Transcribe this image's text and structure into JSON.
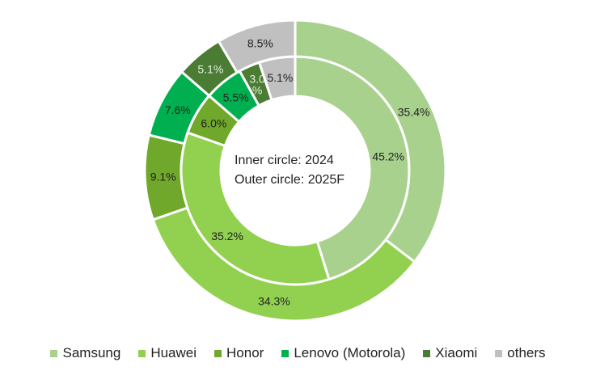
{
  "chart_data": {
    "type": "pie",
    "variant": "nested-donut",
    "categories": [
      "Samsung",
      "Huawei",
      "Honor",
      "Lenovo (Motorola)",
      "Xiaomi",
      "others"
    ],
    "colors": [
      "#a9d18e",
      "#92d050",
      "#6fa82a",
      "#00b050",
      "#4a7c34",
      "#c0c0c0"
    ],
    "label_colors": [
      "#222",
      "#222",
      "#222",
      "#222",
      "#e8f0e0",
      "#222"
    ],
    "series": [
      {
        "name": "2024",
        "ring": "inner",
        "values": [
          45.2,
          35.2,
          6.0,
          5.5,
          3.0,
          5.1
        ],
        "labels": [
          "45.2%",
          "35.2%",
          "6.0%",
          "5.5%",
          "3.0\n%",
          "5.1%"
        ]
      },
      {
        "name": "2025F",
        "ring": "outer",
        "values": [
          35.4,
          34.3,
          9.1,
          7.6,
          5.1,
          8.5
        ],
        "labels": [
          "35.4%",
          "34.3%",
          "9.1%",
          "7.6%",
          "5.1%",
          "8.5%"
        ]
      }
    ],
    "center_text": [
      "Inner circle: 2024",
      "Outer circle: 2025F"
    ],
    "legend": "bottom"
  }
}
